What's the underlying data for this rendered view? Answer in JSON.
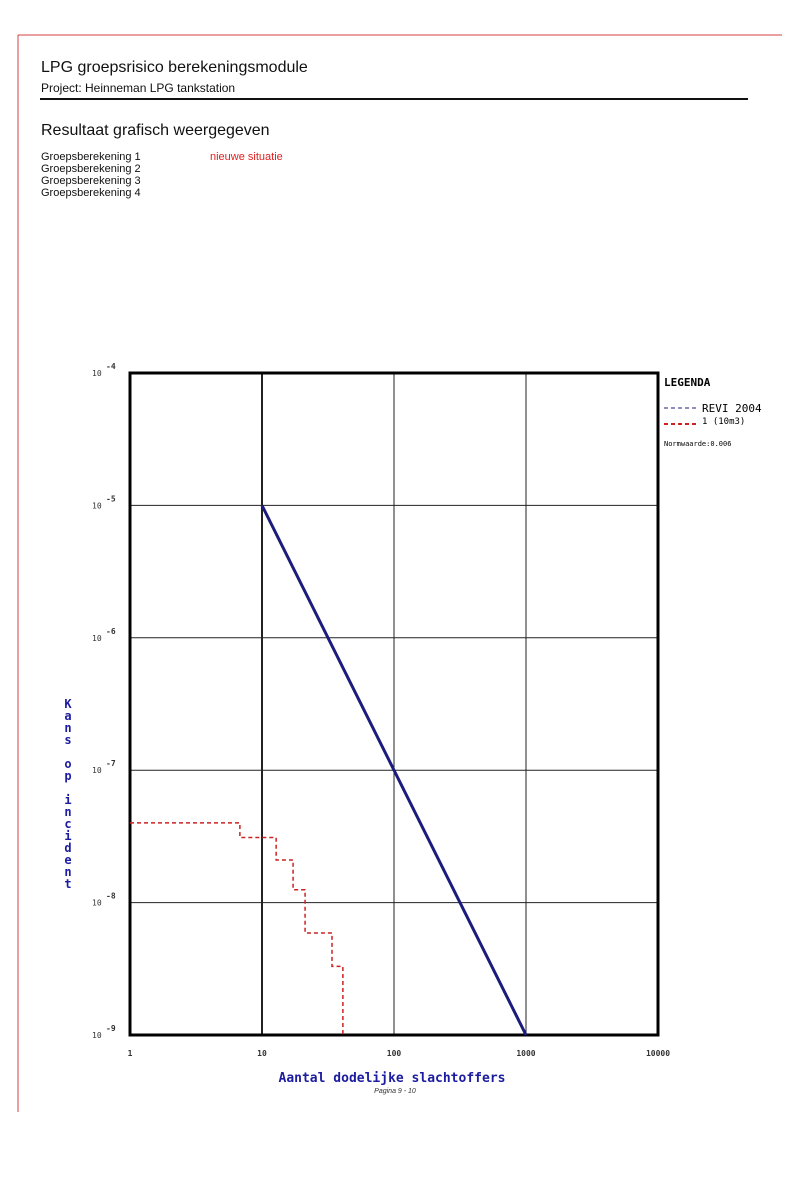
{
  "header": {
    "title": "LPG groepsrisico berekeningsmodule",
    "project": "Project: Heinneman LPG tankstation"
  },
  "section": {
    "title": "Resultaat grafisch weergegeven",
    "items": [
      "Groepsberekening 1",
      "Groepsberekening 2",
      "Groepsberekening 3",
      "Groepsberekening 4"
    ],
    "status": "nieuwe situatie"
  },
  "chart_data": {
    "type": "line",
    "x_label": "Aantal dodelijke slachtoffers",
    "y_label": "Kans op incident",
    "x_scale": "log",
    "y_scale": "log",
    "xlim": [
      1,
      10000
    ],
    "ylim": [
      1e-09,
      0.0001
    ],
    "xticks": [
      1,
      10,
      100,
      1000,
      10000
    ],
    "yticks": [
      {
        "value": 0.0001,
        "label": "10",
        "exponent": "-4"
      },
      {
        "value": 1e-05,
        "label": "10",
        "exponent": "-5"
      },
      {
        "value": 1e-06,
        "label": "10",
        "exponent": "-6"
      },
      {
        "value": 1e-07,
        "label": "10",
        "exponent": "-7"
      },
      {
        "value": 1e-08,
        "label": "10",
        "exponent": "-8"
      },
      {
        "value": 1e-09,
        "label": "10",
        "exponent": "-9"
      }
    ],
    "grid": true,
    "legend_title": "LEGENDA",
    "legend_note": "Normwaarde:0.006",
    "legend": "right",
    "series": [
      {
        "name": "REVI 2004",
        "color": "#1c1c7c",
        "x": [
          10,
          1000
        ],
        "values": [
          1e-05,
          1e-09
        ]
      },
      {
        "name": "1 (10m3)",
        "color": "#cc2222",
        "step": "post",
        "dashed": true,
        "x": [
          1,
          6.8,
          12.8,
          17.2,
          21.2,
          33.9,
          41
        ],
        "values": [
          4e-08,
          3.1e-08,
          2.1e-08,
          1.25e-08,
          5.9e-09,
          3.3e-09,
          1e-09
        ]
      }
    ]
  },
  "footer": {
    "page": "Pagina 9 - 10"
  }
}
